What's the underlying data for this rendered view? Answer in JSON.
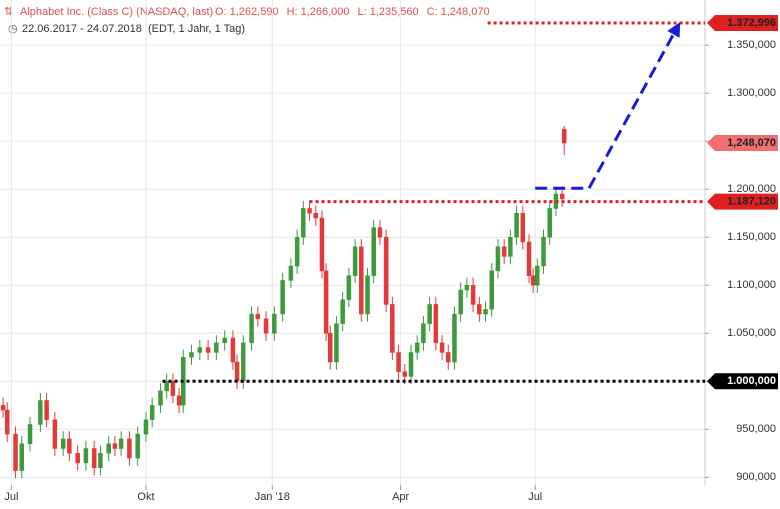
{
  "header": {
    "title": "Alphabet Inc. (Class C) (NASDAQ, last)",
    "ohlc": [
      {
        "name": "O:",
        "value": 1262590,
        "label": "1,262,590"
      },
      {
        "name": "H:",
        "value": 1266000,
        "label": "1,266,000"
      },
      {
        "name": "L:",
        "value": 1235560,
        "label": "1,235,560"
      },
      {
        "name": "C:",
        "value": 1248070,
        "label": "1,248,070"
      }
    ],
    "range": "22.06.2017 - 24.07.2018",
    "info": "(EDT, 1 Jahr, 1 Tag)"
  },
  "chart_data": {
    "type": "candlestick",
    "up_color": "#3d9a3d",
    "down_color": "#e03a3a",
    "grid": true,
    "xlim": [
      -1.5,
      339
    ],
    "ylim": [
      892000,
      1397000
    ],
    "xticks": [
      {
        "value": 4,
        "label": "Jul"
      },
      {
        "value": 69,
        "label": "Okt"
      },
      {
        "value": 130,
        "label": "Jan '18"
      },
      {
        "value": 192,
        "label": "Apr"
      },
      {
        "value": 257,
        "label": "Jul"
      }
    ],
    "yticks": [
      {
        "value": 900000,
        "label": "900,000"
      },
      {
        "value": 950000,
        "label": "950,000"
      },
      {
        "value": 1000000,
        "label": "1.000,000"
      },
      {
        "value": 1050000,
        "label": "1.050,000"
      },
      {
        "value": 1100000,
        "label": "1.100,000"
      },
      {
        "value": 1150000,
        "label": "1.150,000"
      },
      {
        "value": 1200000,
        "label": "1.200,000"
      },
      {
        "value": 1250000,
        "label": "1.250,000"
      },
      {
        "value": 1300000,
        "label": "1.300,000"
      },
      {
        "value": 1350000,
        "label": "1.350,000"
      }
    ],
    "x": [
      0,
      2,
      6,
      9,
      13,
      18,
      21,
      25,
      29,
      32,
      36,
      40,
      44,
      47,
      51,
      54,
      57,
      61,
      65,
      69,
      72,
      76,
      79,
      82,
      85,
      87,
      91,
      95,
      99,
      103,
      107,
      111,
      113,
      116,
      120,
      123,
      127,
      131,
      135,
      139,
      142,
      145,
      148,
      151,
      154,
      156,
      158,
      161,
      164,
      167,
      170,
      173,
      176,
      179,
      182,
      185,
      188,
      191,
      194,
      197,
      200,
      203,
      206,
      209,
      212,
      215,
      218,
      221,
      224,
      227,
      230,
      233,
      236,
      239,
      242,
      245,
      248,
      251,
      254,
      256,
      258,
      261,
      264,
      267,
      270,
      271
    ],
    "open": [
      975000,
      970000,
      945000,
      907000,
      935000,
      955000,
      980000,
      960000,
      930000,
      940000,
      925000,
      915000,
      930000,
      910000,
      925000,
      935000,
      930000,
      940000,
      920000,
      945000,
      960000,
      975000,
      990000,
      1000000,
      985000,
      975000,
      1025000,
      1030000,
      1035000,
      1030000,
      1040000,
      1045000,
      1020000,
      1000000,
      1040000,
      1070000,
      1065000,
      1050000,
      1070000,
      1105000,
      1120000,
      1150000,
      1180000,
      1175000,
      1170000,
      1115000,
      1050000,
      1020000,
      1060000,
      1085000,
      1110000,
      1140000,
      1070000,
      1110000,
      1160000,
      1150000,
      1080000,
      1030000,
      1010000,
      1005000,
      1030000,
      1040000,
      1060000,
      1080000,
      1040000,
      1030000,
      1020000,
      1070000,
      1095000,
      1100000,
      1080000,
      1070000,
      1075000,
      1115000,
      1140000,
      1130000,
      1150000,
      1175000,
      1145000,
      1110000,
      1100000,
      1120000,
      1150000,
      1180000,
      1195000,
      1262590
    ],
    "high": [
      983000,
      978000,
      953000,
      943000,
      963000,
      988000,
      988000,
      968000,
      948000,
      948000,
      933000,
      938000,
      938000,
      933000,
      943000,
      943000,
      948000,
      948000,
      953000,
      968000,
      983000,
      998000,
      1008000,
      1008000,
      993000,
      1033000,
      1038000,
      1043000,
      1043000,
      1048000,
      1053000,
      1053000,
      1028000,
      1048000,
      1078000,
      1078000,
      1073000,
      1078000,
      1113000,
      1128000,
      1158000,
      1188000,
      1188000,
      1183000,
      1178000,
      1123000,
      1058000,
      1068000,
      1093000,
      1118000,
      1148000,
      1148000,
      1118000,
      1168000,
      1168000,
      1158000,
      1088000,
      1038000,
      1018000,
      1038000,
      1048000,
      1068000,
      1088000,
      1088000,
      1048000,
      1038000,
      1078000,
      1103000,
      1108000,
      1108000,
      1088000,
      1083000,
      1123000,
      1148000,
      1148000,
      1158000,
      1183000,
      1183000,
      1153000,
      1118000,
      1128000,
      1158000,
      1188000,
      1203000,
      1203000,
      1266000
    ],
    "low": [
      962000,
      937000,
      899000,
      899000,
      927000,
      947000,
      952000,
      922000,
      922000,
      917000,
      907000,
      907000,
      902000,
      902000,
      917000,
      922000,
      922000,
      912000,
      912000,
      937000,
      952000,
      967000,
      982000,
      977000,
      967000,
      967000,
      1017000,
      1022000,
      1022000,
      1022000,
      1032000,
      1012000,
      992000,
      992000,
      1032000,
      1057000,
      1042000,
      1042000,
      1062000,
      1097000,
      1112000,
      1142000,
      1167000,
      1162000,
      1107000,
      1042000,
      1012000,
      1012000,
      1052000,
      1077000,
      1102000,
      1062000,
      1062000,
      1102000,
      1142000,
      1072000,
      1022000,
      1002000,
      997000,
      997000,
      1022000,
      1032000,
      1052000,
      1032000,
      1022000,
      1012000,
      1012000,
      1062000,
      1087000,
      1072000,
      1062000,
      1062000,
      1067000,
      1107000,
      1122000,
      1122000,
      1142000,
      1137000,
      1102000,
      1092000,
      1092000,
      1112000,
      1142000,
      1172000,
      1182000,
      1235560
    ],
    "close": [
      970000,
      945000,
      907000,
      935000,
      955000,
      980000,
      960000,
      930000,
      940000,
      925000,
      915000,
      930000,
      910000,
      925000,
      935000,
      930000,
      940000,
      920000,
      945000,
      960000,
      975000,
      990000,
      1000000,
      985000,
      975000,
      1025000,
      1030000,
      1035000,
      1030000,
      1040000,
      1045000,
      1020000,
      1000000,
      1040000,
      1070000,
      1065000,
      1050000,
      1070000,
      1105000,
      1120000,
      1150000,
      1180000,
      1175000,
      1170000,
      1115000,
      1050000,
      1020000,
      1060000,
      1085000,
      1110000,
      1140000,
      1070000,
      1110000,
      1160000,
      1150000,
      1080000,
      1030000,
      1010000,
      1005000,
      1030000,
      1040000,
      1060000,
      1080000,
      1040000,
      1030000,
      1020000,
      1070000,
      1095000,
      1100000,
      1080000,
      1070000,
      1075000,
      1115000,
      1140000,
      1130000,
      1150000,
      1175000,
      1145000,
      1110000,
      1100000,
      1120000,
      1150000,
      1180000,
      1195000,
      1190000,
      1248070
    ],
    "levels": [
      {
        "value": 1372996,
        "label": "1.372,996",
        "color": "#e02020",
        "x_start": 234
      },
      {
        "value": 1187120,
        "label": "1.187,120",
        "color": "#e02020",
        "x_start": 148
      },
      {
        "value": 1000000,
        "label": "1.000,000",
        "color": "#000000",
        "x_start": 77
      }
    ],
    "last_price": {
      "value": 1248070,
      "label": "1,248,070",
      "color": "#f07070"
    },
    "trend": {
      "color": "#1a1adb",
      "x": [
        257,
        283,
        327
      ],
      "y": [
        1201000,
        1201000,
        1374000
      ]
    }
  }
}
